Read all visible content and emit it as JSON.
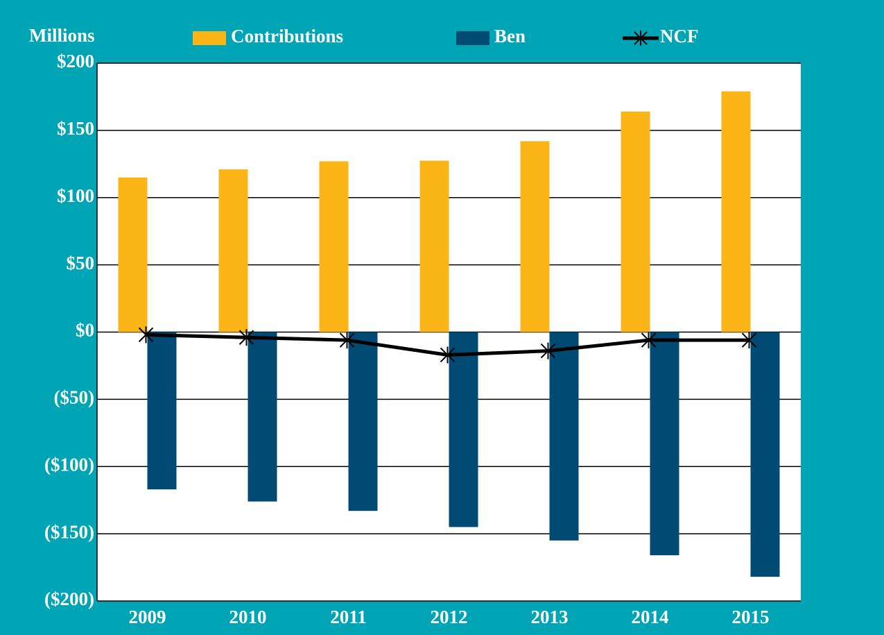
{
  "chart_data": {
    "type": "bar",
    "y_axis_label": "Millions",
    "categories": [
      "2009",
      "2010",
      "2011",
      "2012",
      "2013",
      "2014",
      "2015"
    ],
    "series": [
      {
        "name": "Contributions",
        "type": "bar",
        "color": "#fbb517",
        "values": [
          115,
          121,
          127,
          127.5,
          142,
          164,
          179
        ]
      },
      {
        "name": "Ben",
        "type": "bar",
        "color": "#004a73",
        "values": [
          -117,
          -126,
          -133,
          -145,
          -155,
          -166,
          -182
        ]
      },
      {
        "name": "NCF",
        "type": "line",
        "color": "#000000",
        "values": [
          -2,
          -4,
          -6,
          -17,
          -14,
          -6,
          -6
        ]
      }
    ],
    "ylim": [
      -200,
      200
    ],
    "yticks": [
      {
        "value": 200,
        "label": "$200"
      },
      {
        "value": 150,
        "label": "$150"
      },
      {
        "value": 100,
        "label": "$100"
      },
      {
        "value": 50,
        "label": "$50"
      },
      {
        "value": 0,
        "label": "$0"
      },
      {
        "value": -50,
        "label": "($50)"
      },
      {
        "value": -100,
        "label": "($100)"
      },
      {
        "value": -150,
        "label": "($150)"
      },
      {
        "value": -200,
        "label": "($200)"
      }
    ],
    "grid": true,
    "legend": "top"
  }
}
